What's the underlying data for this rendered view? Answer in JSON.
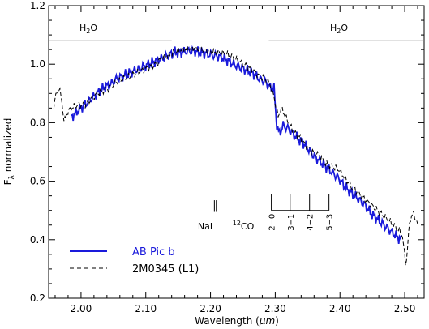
{
  "chart_data": {
    "type": "line",
    "title": "",
    "xlabel_main": "Wavelength (",
    "xlabel_unit": "μm",
    "xlabel_close": ")",
    "ylabel_symbol": "F",
    "ylabel_sub": "λ",
    "ylabel_rest": " normalized",
    "xlim": [
      1.95,
      2.53
    ],
    "ylim": [
      0.2,
      1.2
    ],
    "x_ticks": [
      "2.00",
      "2.10",
      "2.20",
      "2.30",
      "2.40",
      "2.50"
    ],
    "x_tick_values": [
      2.0,
      2.1,
      2.2,
      2.3,
      2.4,
      2.5
    ],
    "y_ticks": [
      "0.2",
      "0.4",
      "0.6",
      "0.8",
      "1.0",
      "1.2"
    ],
    "y_tick_values": [
      0.2,
      0.4,
      0.6,
      0.8,
      1.0,
      1.2
    ],
    "grid": false,
    "legend_position": "bottom-left",
    "series": [
      {
        "name": "AB Pic b",
        "color": "#1a1adb",
        "style": "solid",
        "x": [
          1.985,
          1.995,
          2.005,
          2.015,
          2.025,
          2.035,
          2.045,
          2.055,
          2.065,
          2.075,
          2.085,
          2.095,
          2.105,
          2.115,
          2.125,
          2.135,
          2.145,
          2.155,
          2.165,
          2.175,
          2.185,
          2.195,
          2.205,
          2.215,
          2.225,
          2.235,
          2.245,
          2.255,
          2.265,
          2.275,
          2.285,
          2.292,
          2.298,
          2.302,
          2.306,
          2.312,
          2.32,
          2.328,
          2.338,
          2.348,
          2.358,
          2.368,
          2.378,
          2.388,
          2.398,
          2.408,
          2.418,
          2.428,
          2.438,
          2.448,
          2.458,
          2.468,
          2.478,
          2.488,
          2.495
        ],
        "y": [
          0.82,
          0.84,
          0.86,
          0.88,
          0.9,
          0.92,
          0.93,
          0.95,
          0.96,
          0.97,
          0.98,
          0.99,
          1.0,
          1.01,
          1.02,
          1.03,
          1.04,
          1.04,
          1.045,
          1.045,
          1.04,
          1.035,
          1.03,
          1.025,
          1.015,
          1.0,
          0.99,
          0.98,
          0.97,
          0.95,
          0.94,
          0.92,
          0.92,
          0.8,
          0.76,
          0.79,
          0.78,
          0.76,
          0.74,
          0.72,
          0.69,
          0.67,
          0.65,
          0.63,
          0.61,
          0.58,
          0.56,
          0.54,
          0.52,
          0.49,
          0.47,
          0.45,
          0.43,
          0.41,
          0.4
        ]
      },
      {
        "name": "2M0345 (L1)",
        "color": "#000000",
        "style": "dashed",
        "x": [
          1.958,
          1.962,
          1.966,
          1.97,
          1.974,
          1.978,
          1.985,
          1.995,
          2.005,
          2.015,
          2.025,
          2.035,
          2.045,
          2.055,
          2.065,
          2.075,
          2.085,
          2.095,
          2.105,
          2.115,
          2.125,
          2.135,
          2.145,
          2.155,
          2.165,
          2.175,
          2.185,
          2.195,
          2.205,
          2.215,
          2.225,
          2.235,
          2.245,
          2.255,
          2.265,
          2.275,
          2.285,
          2.292,
          2.298,
          2.304,
          2.31,
          2.318,
          2.328,
          2.338,
          2.348,
          2.358,
          2.368,
          2.378,
          2.388,
          2.398,
          2.408,
          2.418,
          2.428,
          2.438,
          2.448,
          2.458,
          2.468,
          2.478,
          2.488,
          2.496,
          2.502,
          2.508,
          2.514,
          2.52
        ],
        "y": [
          0.86,
          0.9,
          0.92,
          0.88,
          0.8,
          0.83,
          0.85,
          0.86,
          0.86,
          0.88,
          0.9,
          0.91,
          0.92,
          0.94,
          0.95,
          0.96,
          0.97,
          0.98,
          0.99,
          1.0,
          1.02,
          1.03,
          1.04,
          1.05,
          1.05,
          1.055,
          1.05,
          1.045,
          1.04,
          1.04,
          1.035,
          1.025,
          1.01,
          0.995,
          0.98,
          0.96,
          0.95,
          0.93,
          0.89,
          0.82,
          0.85,
          0.81,
          0.77,
          0.75,
          0.72,
          0.7,
          0.69,
          0.66,
          0.65,
          0.64,
          0.61,
          0.58,
          0.56,
          0.54,
          0.52,
          0.5,
          0.48,
          0.46,
          0.44,
          0.42,
          0.31,
          0.47,
          0.49,
          0.45
        ]
      }
    ],
    "annotations": {
      "h2o_left": "H",
      "h2o_left_sub": "2",
      "h2o_left_end": "O",
      "h2o_left_range": [
        1.95,
        2.14
      ],
      "h2o_left_y": 1.08,
      "h2o_right": "H",
      "h2o_right_sub": "2",
      "h2o_right_end": "O",
      "h2o_right_range": [
        2.29,
        2.53
      ],
      "h2o_right_y": 1.08,
      "nai_label": "NaI",
      "nai_lines": [
        2.206,
        2.209
      ],
      "nai_y": [
        0.495,
        0.535
      ],
      "co_sup": "12",
      "co_text": "CO",
      "co_band_heads": [
        "2−0",
        "3−1",
        "4−2",
        "5−3"
      ],
      "co_band_x": [
        2.294,
        2.323,
        2.353,
        2.383
      ],
      "co_y_top": 0.555,
      "co_y_bar": 0.5
    }
  }
}
